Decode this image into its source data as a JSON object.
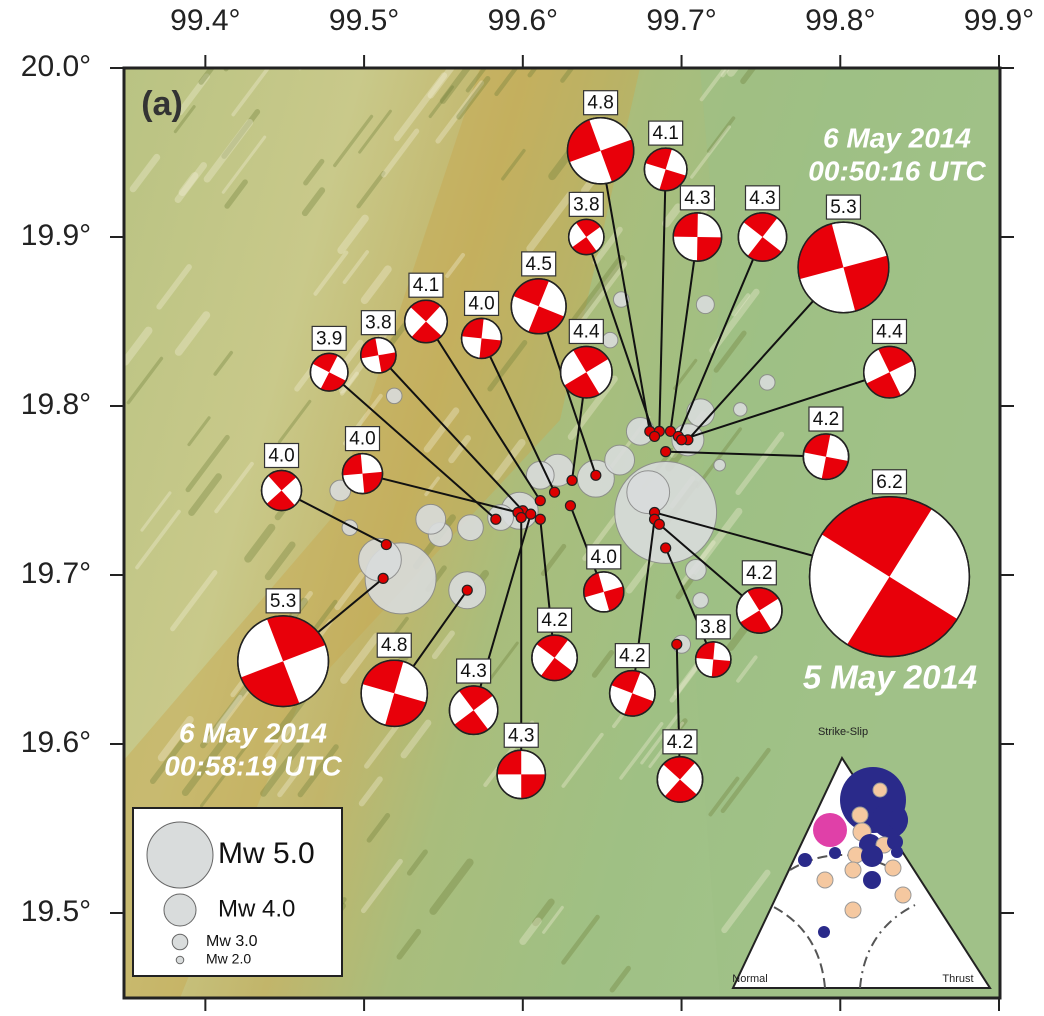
{
  "map": {
    "panel_label": "(a)",
    "xlim": [
      99.35,
      99.9
    ],
    "ylim": [
      19.45,
      20.0
    ],
    "xticks": [
      {
        "value": 99.4,
        "label": "99.4°"
      },
      {
        "value": 99.5,
        "label": "99.5°"
      },
      {
        "value": 99.6,
        "label": "99.6°"
      },
      {
        "value": 99.7,
        "label": "99.7°"
      },
      {
        "value": 99.8,
        "label": "99.8°"
      },
      {
        "value": 99.9,
        "label": "99.9°"
      }
    ],
    "yticks": [
      {
        "value": 20.0,
        "label": "20.0°"
      },
      {
        "value": 19.9,
        "label": "19.9°"
      },
      {
        "value": 19.8,
        "label": "19.8°"
      },
      {
        "value": 19.7,
        "label": "19.7°"
      },
      {
        "value": 19.6,
        "label": "19.6°"
      },
      {
        "value": 19.5,
        "label": "19.5°"
      }
    ],
    "annotations": [
      {
        "lines": [
          "6 May 2014",
          "00:50:16 UTC"
        ]
      },
      {
        "lines": [
          "5 May 2014"
        ]
      },
      {
        "lines": [
          "6 May 2014",
          "00:58:19 UTC"
        ]
      }
    ],
    "legend": [
      {
        "label": "Mw 5.0",
        "mw": 5.0
      },
      {
        "label": "Mw 4.0",
        "mw": 4.0
      },
      {
        "label": "Mw 3.0",
        "mw": 3.0
      },
      {
        "label": "Mw 2.0",
        "mw": 2.0
      }
    ],
    "ternary": {
      "top": "Strike-Slip",
      "left": "Normal",
      "right": "Thrust"
    },
    "events": [
      {
        "lon": 99.523,
        "lat": 19.698,
        "mw": 5.1
      },
      {
        "lon": 99.69,
        "lat": 19.737,
        "mw": 5.6
      },
      {
        "lon": 99.51,
        "lat": 19.709,
        "mw": 4.4
      },
      {
        "lon": 99.679,
        "lat": 19.749,
        "mw": 4.4
      },
      {
        "lon": 99.598,
        "lat": 19.738,
        "mw": 4.2
      },
      {
        "lon": 99.646,
        "lat": 19.757,
        "mw": 4.2
      },
      {
        "lon": 99.622,
        "lat": 19.762,
        "mw": 4.0
      },
      {
        "lon": 99.661,
        "lat": 19.768,
        "mw": 3.9
      },
      {
        "lon": 99.712,
        "lat": 19.796,
        "mw": 3.8
      },
      {
        "lon": 99.565,
        "lat": 19.691,
        "mw": 4.2
      },
      {
        "lon": 99.674,
        "lat": 19.785,
        "mw": 3.8
      },
      {
        "lon": 99.704,
        "lat": 19.78,
        "mw": 4.0
      },
      {
        "lon": 99.567,
        "lat": 19.728,
        "mw": 3.7
      },
      {
        "lon": 99.548,
        "lat": 19.724,
        "mw": 3.6
      },
      {
        "lon": 99.586,
        "lat": 19.734,
        "mw": 3.7
      },
      {
        "lon": 99.715,
        "lat": 19.86,
        "mw": 3.2
      },
      {
        "lon": 99.754,
        "lat": 19.814,
        "mw": 3.0
      },
      {
        "lon": 99.662,
        "lat": 19.863,
        "mw": 3.0
      },
      {
        "lon": 99.519,
        "lat": 19.806,
        "mw": 3.0
      },
      {
        "lon": 99.485,
        "lat": 19.75,
        "mw": 3.4
      },
      {
        "lon": 99.491,
        "lat": 19.728,
        "mw": 3.0
      },
      {
        "lon": 99.709,
        "lat": 19.703,
        "mw": 3.4
      },
      {
        "lon": 99.712,
        "lat": 19.685,
        "mw": 3.0
      },
      {
        "lon": 99.7,
        "lat": 19.659,
        "mw": 3.2
      },
      {
        "lon": 99.737,
        "lat": 19.798,
        "mw": 2.8
      },
      {
        "lon": 99.655,
        "lat": 19.839,
        "mw": 3.0
      },
      {
        "lon": 99.724,
        "lat": 19.765,
        "mw": 2.6
      },
      {
        "lon": 99.542,
        "lat": 19.733,
        "mw": 3.9
      },
      {
        "lon": 99.611,
        "lat": 19.759,
        "mw": 3.8
      }
    ],
    "mechanisms": [
      {
        "mw": "4.8",
        "lon": 99.649,
        "lat": 19.951,
        "epi_lon": 99.68,
        "epi_lat": 19.785
      },
      {
        "mw": "4.1",
        "lon": 99.69,
        "lat": 19.94,
        "epi_lon": 99.686,
        "epi_lat": 19.785
      },
      {
        "mw": "3.8",
        "lon": 99.64,
        "lat": 19.9,
        "epi_lon": 99.683,
        "epi_lat": 19.782
      },
      {
        "mw": "4.3",
        "lon": 99.71,
        "lat": 19.9,
        "epi_lon": 99.693,
        "epi_lat": 19.785
      },
      {
        "mw": "4.3",
        "lon": 99.751,
        "lat": 19.9,
        "epi_lon": 99.698,
        "epi_lat": 19.782
      },
      {
        "mw": "5.3",
        "lon": 99.802,
        "lat": 19.882,
        "epi_lon": 99.704,
        "epi_lat": 19.78
      },
      {
        "mw": "4.5",
        "lon": 99.61,
        "lat": 19.859,
        "epi_lon": 99.646,
        "epi_lat": 19.759
      },
      {
        "mw": "4.4",
        "lon": 99.64,
        "lat": 19.82,
        "epi_lon": 99.631,
        "epi_lat": 19.756
      },
      {
        "mw": "4.0",
        "lon": 99.574,
        "lat": 19.84,
        "epi_lon": 99.62,
        "epi_lat": 19.749
      },
      {
        "mw": "4.1",
        "lon": 99.539,
        "lat": 19.85,
        "epi_lon": 99.611,
        "epi_lat": 19.744
      },
      {
        "mw": "3.8",
        "lon": 99.509,
        "lat": 19.83,
        "epi_lon": 99.6,
        "epi_lat": 19.738
      },
      {
        "mw": "3.9",
        "lon": 99.478,
        "lat": 19.82,
        "epi_lon": 99.583,
        "epi_lat": 19.733
      },
      {
        "mw": "4.4",
        "lon": 99.831,
        "lat": 19.82,
        "epi_lon": 99.7,
        "epi_lat": 19.78
      },
      {
        "mw": "4.2",
        "lon": 99.791,
        "lat": 19.77,
        "epi_lon": 99.69,
        "epi_lat": 19.773
      },
      {
        "mw": "4.0",
        "lon": 99.448,
        "lat": 19.75,
        "epi_lon": 99.514,
        "epi_lat": 19.718
      },
      {
        "mw": "4.0",
        "lon": 99.499,
        "lat": 19.76,
        "epi_lon": 99.597,
        "epi_lat": 19.737
      },
      {
        "mw": "6.2",
        "lon": 99.831,
        "lat": 19.699,
        "epi_lon": 99.683,
        "epi_lat": 19.737
      },
      {
        "mw": "5.3",
        "lon": 99.449,
        "lat": 19.649,
        "epi_lon": 99.512,
        "epi_lat": 19.698
      },
      {
        "mw": "4.8",
        "lon": 99.519,
        "lat": 19.63,
        "epi_lon": 99.565,
        "epi_lat": 19.691
      },
      {
        "mw": "4.3",
        "lon": 99.569,
        "lat": 19.62,
        "epi_lon": 99.605,
        "epi_lat": 19.736
      },
      {
        "mw": "4.3",
        "lon": 99.599,
        "lat": 19.582,
        "epi_lon": 99.599,
        "epi_lat": 19.734
      },
      {
        "mw": "4.2",
        "lon": 99.62,
        "lat": 19.651,
        "epi_lon": 99.611,
        "epi_lat": 19.733
      },
      {
        "mw": "4.0",
        "lon": 99.651,
        "lat": 19.69,
        "epi_lon": 99.63,
        "epi_lat": 19.741
      },
      {
        "mw": "4.2",
        "lon": 99.669,
        "lat": 19.63,
        "epi_lon": 99.683,
        "epi_lat": 19.733
      },
      {
        "mw": "4.2",
        "lon": 99.749,
        "lat": 19.679,
        "epi_lon": 99.686,
        "epi_lat": 19.73
      },
      {
        "mw": "3.8",
        "lon": 99.72,
        "lat": 19.65,
        "epi_lon": 99.69,
        "epi_lat": 19.716
      },
      {
        "mw": "4.2",
        "lon": 99.699,
        "lat": 19.579,
        "epi_lon": 99.697,
        "epi_lat": 19.659
      }
    ]
  }
}
